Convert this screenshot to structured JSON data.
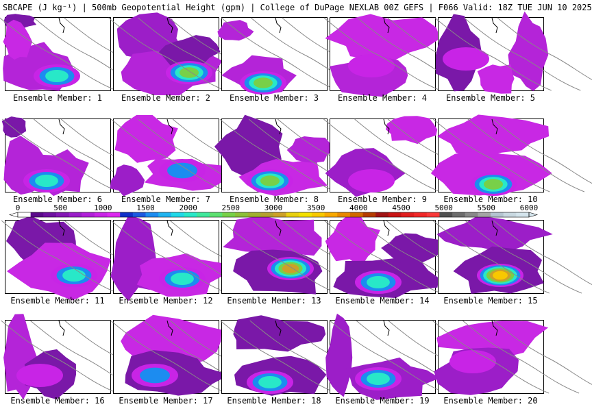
{
  "title": "SBCAPE (J kg⁻¹) | 500mb Geopotential Height (gpm) | College of DuPage NEXLAB 00Z GEFS | F066 Valid: 18Z TUE JUN 10 2025",
  "members": [
    {
      "label": "Ensemble Member: 1",
      "peak_cape": 2000
    },
    {
      "label": "Ensemble Member: 2",
      "peak_cape": 2500
    },
    {
      "label": "Ensemble Member: 3",
      "peak_cape": 2500
    },
    {
      "label": "Ensemble Member: 4",
      "peak_cape": 1000
    },
    {
      "label": "Ensemble Member: 5",
      "peak_cape": 1000
    },
    {
      "label": "Ensemble Member: 6",
      "peak_cape": 2000
    },
    {
      "label": "Ensemble Member: 7",
      "peak_cape": 1500
    },
    {
      "label": "Ensemble Member: 8",
      "peak_cape": 2500
    },
    {
      "label": "Ensemble Member: 9",
      "peak_cape": 1000
    },
    {
      "label": "Ensemble Member: 10",
      "peak_cape": 2500
    },
    {
      "label": "Ensemble Member: 11",
      "peak_cape": 2000
    },
    {
      "label": "Ensemble Member: 12",
      "peak_cape": 2000
    },
    {
      "label": "Ensemble Member: 13",
      "peak_cape": 3000
    },
    {
      "label": "Ensemble Member: 14",
      "peak_cape": 2000
    },
    {
      "label": "Ensemble Member: 15",
      "peak_cape": 3500
    },
    {
      "label": "Ensemble Member: 16",
      "peak_cape": 1000
    },
    {
      "label": "Ensemble Member: 17",
      "peak_cape": 1500
    },
    {
      "label": "Ensemble Member: 18",
      "peak_cape": 2000
    },
    {
      "label": "Ensemble Member: 19",
      "peak_cape": 2000
    },
    {
      "label": "Ensemble Member: 20",
      "peak_cape": 1000
    }
  ],
  "colorbar": {
    "min": 0,
    "max": 6000,
    "tick_labels": [
      "0",
      "500",
      "1000",
      "1500",
      "2000",
      "2500",
      "3000",
      "3500",
      "4000",
      "4500",
      "5000",
      "5500",
      "6000"
    ],
    "colors": [
      "#ffffff",
      "#5a0a8a",
      "#6e12a0",
      "#8418b4",
      "#9a1ec8",
      "#b020d8",
      "#c824e6",
      "#dc28f0",
      "#1030c8",
      "#1c58e0",
      "#1c8cf0",
      "#20b4f0",
      "#20d8e8",
      "#28e8c8",
      "#40e89c",
      "#5ce070",
      "#78d048",
      "#8cc038",
      "#a0b030",
      "#b4a030",
      "#cca028",
      "#e8d010",
      "#f4e000",
      "#f8c800",
      "#f8a800",
      "#e88800",
      "#d06800",
      "#b43c00",
      "#a01414",
      "#c81414",
      "#e01e1e",
      "#f02828",
      "#f83838",
      "#505050",
      "#6c6c6c",
      "#888888",
      "#a4a4a4",
      "#b4c4d0",
      "#c8d8e0",
      "#d4e4ec"
    ]
  }
}
